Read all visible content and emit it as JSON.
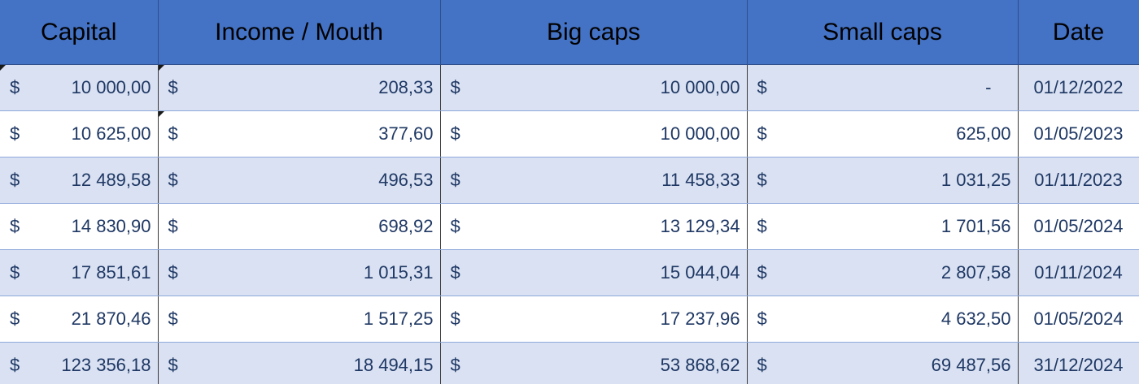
{
  "headers": {
    "capital": "Capital",
    "income": "Income / Mouth",
    "big": "Big caps",
    "small": "Small caps",
    "date": "Date"
  },
  "currency": "$",
  "rows": [
    {
      "capital": "10 000,00",
      "income": "208,33",
      "big": "10 000,00",
      "small": "-",
      "date": "01/12/2022"
    },
    {
      "capital": "10 625,00",
      "income": "377,60",
      "big": "10 000,00",
      "small": "625,00",
      "date": "01/05/2023"
    },
    {
      "capital": "12 489,58",
      "income": "496,53",
      "big": "11 458,33",
      "small": "1 031,25",
      "date": "01/11/2023"
    },
    {
      "capital": "14 830,90",
      "income": "698,92",
      "big": "13 129,34",
      "small": "1 701,56",
      "date": "01/05/2024"
    },
    {
      "capital": "17 851,61",
      "income": "1 015,31",
      "big": "15 044,04",
      "small": "2 807,58",
      "date": "01/11/2024"
    },
    {
      "capital": "21 870,46",
      "income": "1 517,25",
      "big": "17 237,96",
      "small": "4 632,50",
      "date": "01/05/2024"
    },
    {
      "capital": "123 356,18",
      "income": "18 494,15",
      "big": "53 868,62",
      "small": "69 487,56",
      "date": "31/12/2024"
    }
  ],
  "colors": {
    "header_bg": "#4472c4",
    "band_light": "#d9e1f2",
    "band_white": "#ffffff",
    "text": "#1f3864"
  }
}
